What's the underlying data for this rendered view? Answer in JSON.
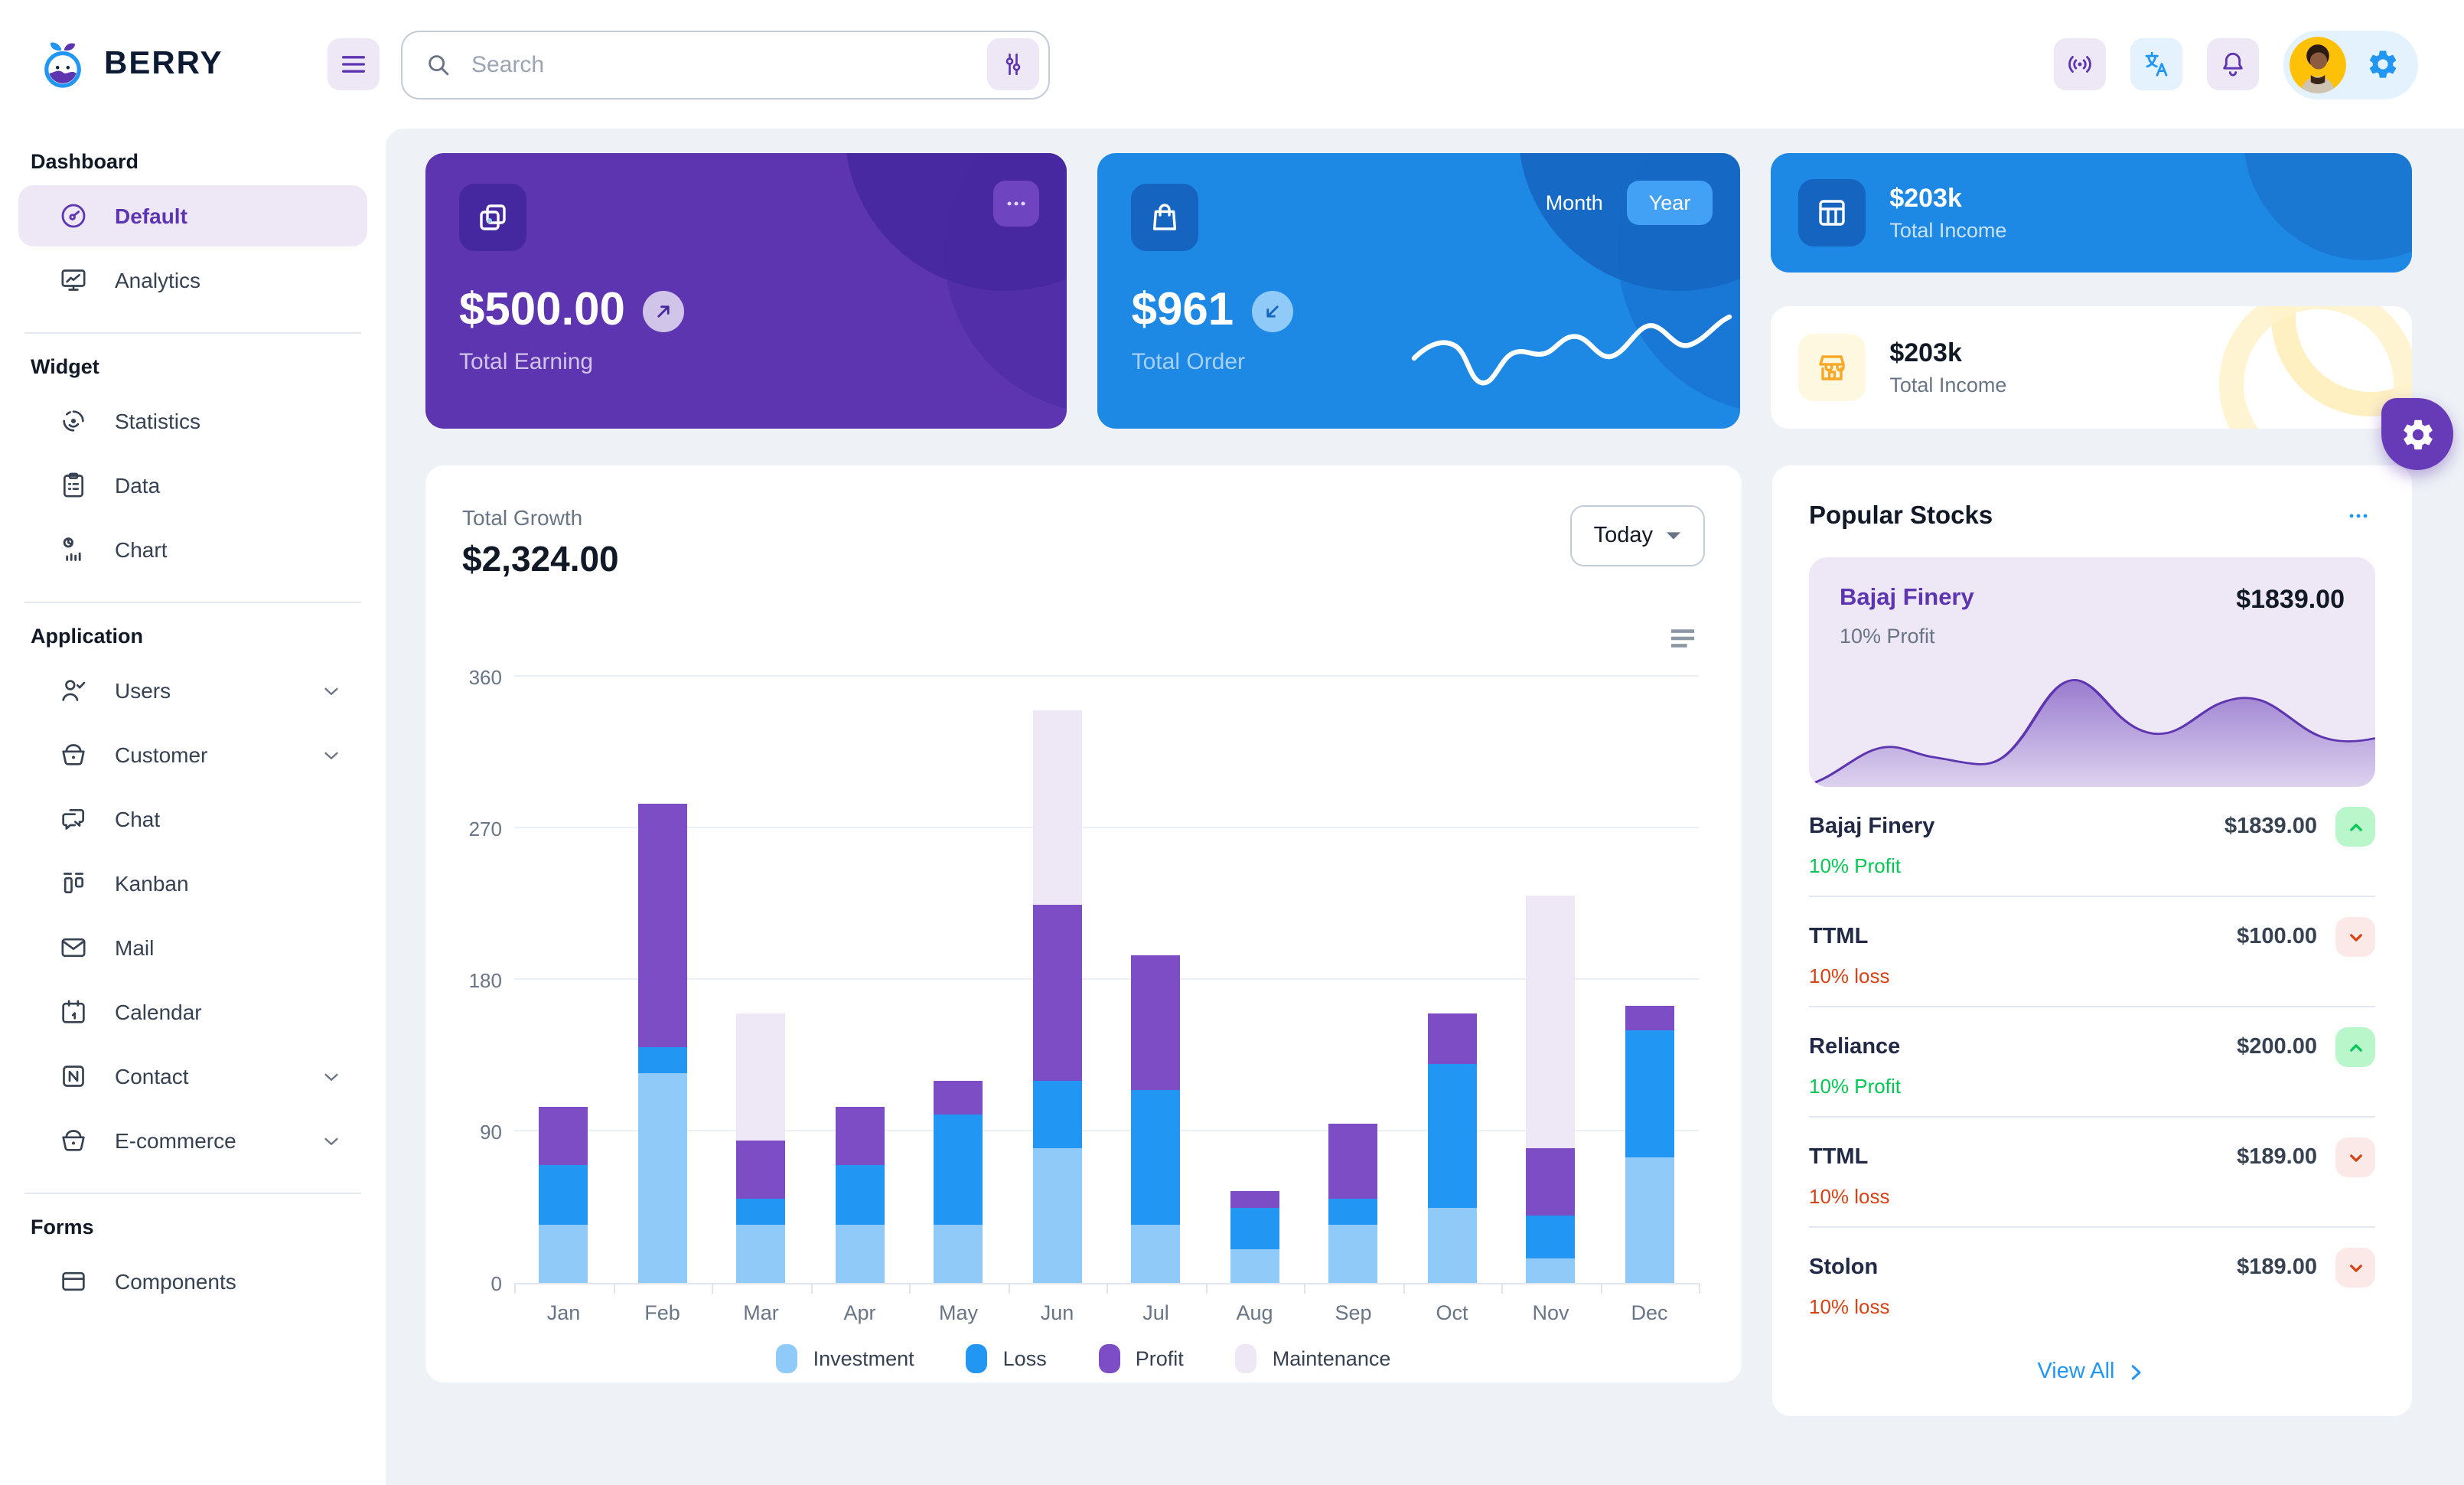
{
  "header": {
    "brand": "BERRY",
    "search_placeholder": "Search"
  },
  "sidebar": {
    "sections": [
      {
        "title": "Dashboard",
        "items": [
          {
            "label": "Default"
          },
          {
            "label": "Analytics"
          }
        ]
      },
      {
        "title": "Widget",
        "items": [
          {
            "label": "Statistics"
          },
          {
            "label": "Data"
          },
          {
            "label": "Chart"
          }
        ]
      },
      {
        "title": "Application",
        "items": [
          {
            "label": "Users"
          },
          {
            "label": "Customer"
          },
          {
            "label": "Chat"
          },
          {
            "label": "Kanban"
          },
          {
            "label": "Mail"
          },
          {
            "label": "Calendar"
          },
          {
            "label": "Contact"
          },
          {
            "label": "E-commerce"
          }
        ]
      },
      {
        "title": "Forms",
        "items": [
          {
            "label": "Components"
          }
        ]
      }
    ]
  },
  "summary": {
    "earning": {
      "value": "$500.00",
      "label": "Total Earning"
    },
    "order": {
      "value": "$961",
      "label": "Total Order",
      "toggle_month": "Month",
      "toggle_year": "Year",
      "selected": "Year"
    },
    "income_primary": {
      "value": "$203k",
      "label": "Total Income"
    },
    "income_secondary": {
      "value": "$203k",
      "label": "Total Income"
    }
  },
  "growth": {
    "title": "Total Growth",
    "amount": "$2,324.00",
    "period": "Today"
  },
  "chart_data": {
    "type": "bar",
    "stacked": true,
    "title": "Total Growth",
    "categories": [
      "Jan",
      "Feb",
      "Mar",
      "Apr",
      "May",
      "Jun",
      "Jul",
      "Aug",
      "Sep",
      "Oct",
      "Nov",
      "Dec"
    ],
    "series": [
      {
        "name": "Investment",
        "color": "#90caf9",
        "values": [
          35,
          125,
          35,
          35,
          35,
          80,
          35,
          20,
          35,
          45,
          15,
          75
        ]
      },
      {
        "name": "Loss",
        "color": "#2196f3",
        "values": [
          35,
          15,
          15,
          35,
          65,
          40,
          80,
          25,
          15,
          85,
          25,
          75
        ]
      },
      {
        "name": "Profit",
        "color": "#7c4dc4",
        "values": [
          35,
          145,
          35,
          35,
          20,
          105,
          80,
          10,
          45,
          30,
          40,
          15
        ]
      },
      {
        "name": "Maintenance",
        "color": "#ede7f6",
        "values": [
          0,
          0,
          75,
          0,
          0,
          115,
          0,
          0,
          0,
          0,
          150,
          0
        ]
      }
    ],
    "xlabel": "",
    "ylabel": "",
    "ylim": [
      0,
      360
    ],
    "yticks": [
      0,
      90,
      180,
      270,
      360
    ],
    "grid": true,
    "legend_position": "bottom"
  },
  "stocks": {
    "title": "Popular Stocks",
    "featured": {
      "name": "Bajaj Finery",
      "price": "$1839.00",
      "change": "10% Profit"
    },
    "items": [
      {
        "name": "Bajaj Finery",
        "price": "$1839.00",
        "change": "10% Profit",
        "direction": "up"
      },
      {
        "name": "TTML",
        "price": "$100.00",
        "change": "10% loss",
        "direction": "down"
      },
      {
        "name": "Reliance",
        "price": "$200.00",
        "change": "10% Profit",
        "direction": "up"
      },
      {
        "name": "TTML",
        "price": "$189.00",
        "change": "10% loss",
        "direction": "down"
      },
      {
        "name": "Stolon",
        "price": "$189.00",
        "change": "10% loss",
        "direction": "down"
      }
    ],
    "view_all": "View All"
  },
  "colors": {
    "primary": "#2196f3",
    "secondary": "#5e35b1",
    "success": "#00c853",
    "error": "#d84315",
    "warning": "#ffc107",
    "background": "#eef2f6"
  }
}
